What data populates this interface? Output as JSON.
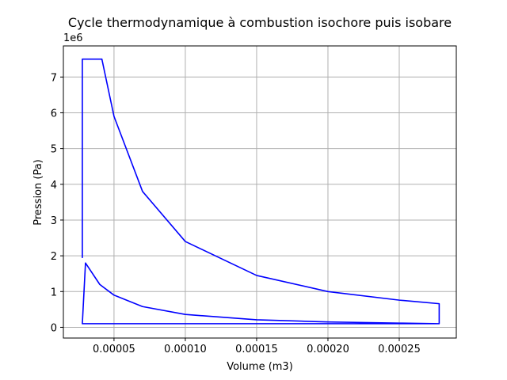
{
  "chart_data": {
    "type": "line",
    "title": "Cycle thermodynamique à combustion isochore puis isobare",
    "xlabel": "Volume (m3)",
    "ylabel": "Pression (Pa)",
    "y_offset_label": "1e6",
    "xlim": [
      1.45e-05,
      0.00029
    ],
    "ylim": [
      -300000,
      7870000
    ],
    "x_ticks": [
      5e-05,
      0.0001,
      0.00015,
      0.0002,
      0.00025
    ],
    "x_tick_labels": [
      "0.00005",
      "0.00010",
      "0.00015",
      "0.00020",
      "0.00025"
    ],
    "y_ticks": [
      0,
      1000000,
      2000000,
      3000000,
      4000000,
      5000000,
      6000000,
      7000000
    ],
    "y_tick_labels": [
      "0",
      "1",
      "2",
      "3",
      "4",
      "5",
      "6",
      "7"
    ],
    "grid": true,
    "line_color": "#0000ff",
    "series": [
      {
        "name": "",
        "color": "#0000ff",
        "points": [
          [
            2.78e-05,
            101325
          ],
          [
            0.000278,
            101325
          ],
          [
            0.000278,
            101325
          ],
          [
            2.78e-05,
            101325
          ],
          [
            3e-05,
            1800000
          ],
          [
            4e-05,
            1200000
          ],
          [
            5e-05,
            900000
          ],
          [
            7e-05,
            580000
          ],
          [
            0.0001,
            360000
          ],
          [
            0.00015,
            210000
          ],
          [
            0.0002,
            150000
          ],
          [
            0.00025,
            118000
          ],
          [
            0.000278,
            101325
          ],
          [
            0.000278,
            660000
          ],
          [
            0.00025,
            760000
          ],
          [
            0.0002,
            1000000
          ],
          [
            0.00015,
            1450000
          ],
          [
            0.0001,
            2400000
          ],
          [
            7e-05,
            3800000
          ],
          [
            5e-05,
            5900000
          ],
          [
            4.15e-05,
            7500000
          ],
          [
            2.78e-05,
            7500000
          ],
          [
            2.78e-05,
            1940000
          ]
        ]
      }
    ]
  }
}
